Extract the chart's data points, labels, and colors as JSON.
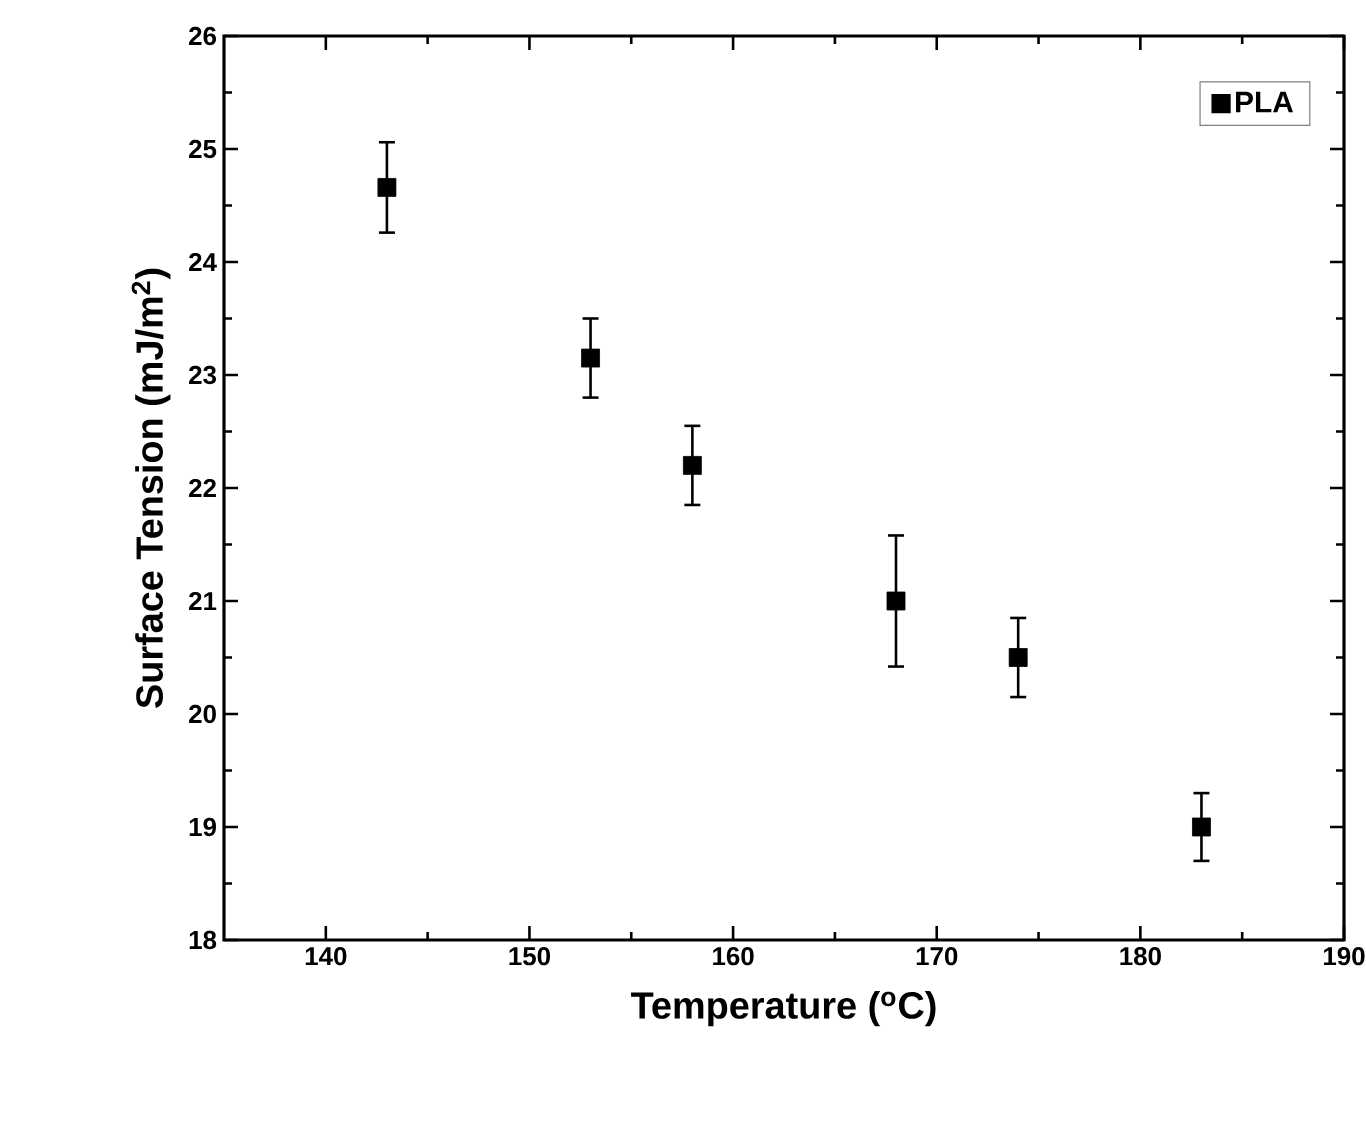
{
  "chart_data": {
    "type": "scatter",
    "xlabel": "Temperature ($^{o}$C)",
    "ylabel": "Surface Tension (mJ/m$^{2}$)",
    "x": [
      143,
      153,
      158,
      168,
      174,
      183
    ],
    "series": [
      {
        "name": "PLA",
        "color": "#000000",
        "values": [
          24.66,
          23.15,
          22.2,
          21.0,
          20.5,
          19.0
        ],
        "errors": [
          0.4,
          0.35,
          0.35,
          0.58,
          0.35,
          0.3
        ]
      }
    ],
    "xlim": [
      135,
      190
    ],
    "xticks": [
      140,
      150,
      160,
      170,
      180,
      190
    ],
    "ylim": [
      18,
      26
    ],
    "yticks": [
      18,
      19,
      20,
      21,
      22,
      23,
      24,
      25,
      26
    ],
    "marker": "square",
    "legend": "top right",
    "grid": false
  }
}
